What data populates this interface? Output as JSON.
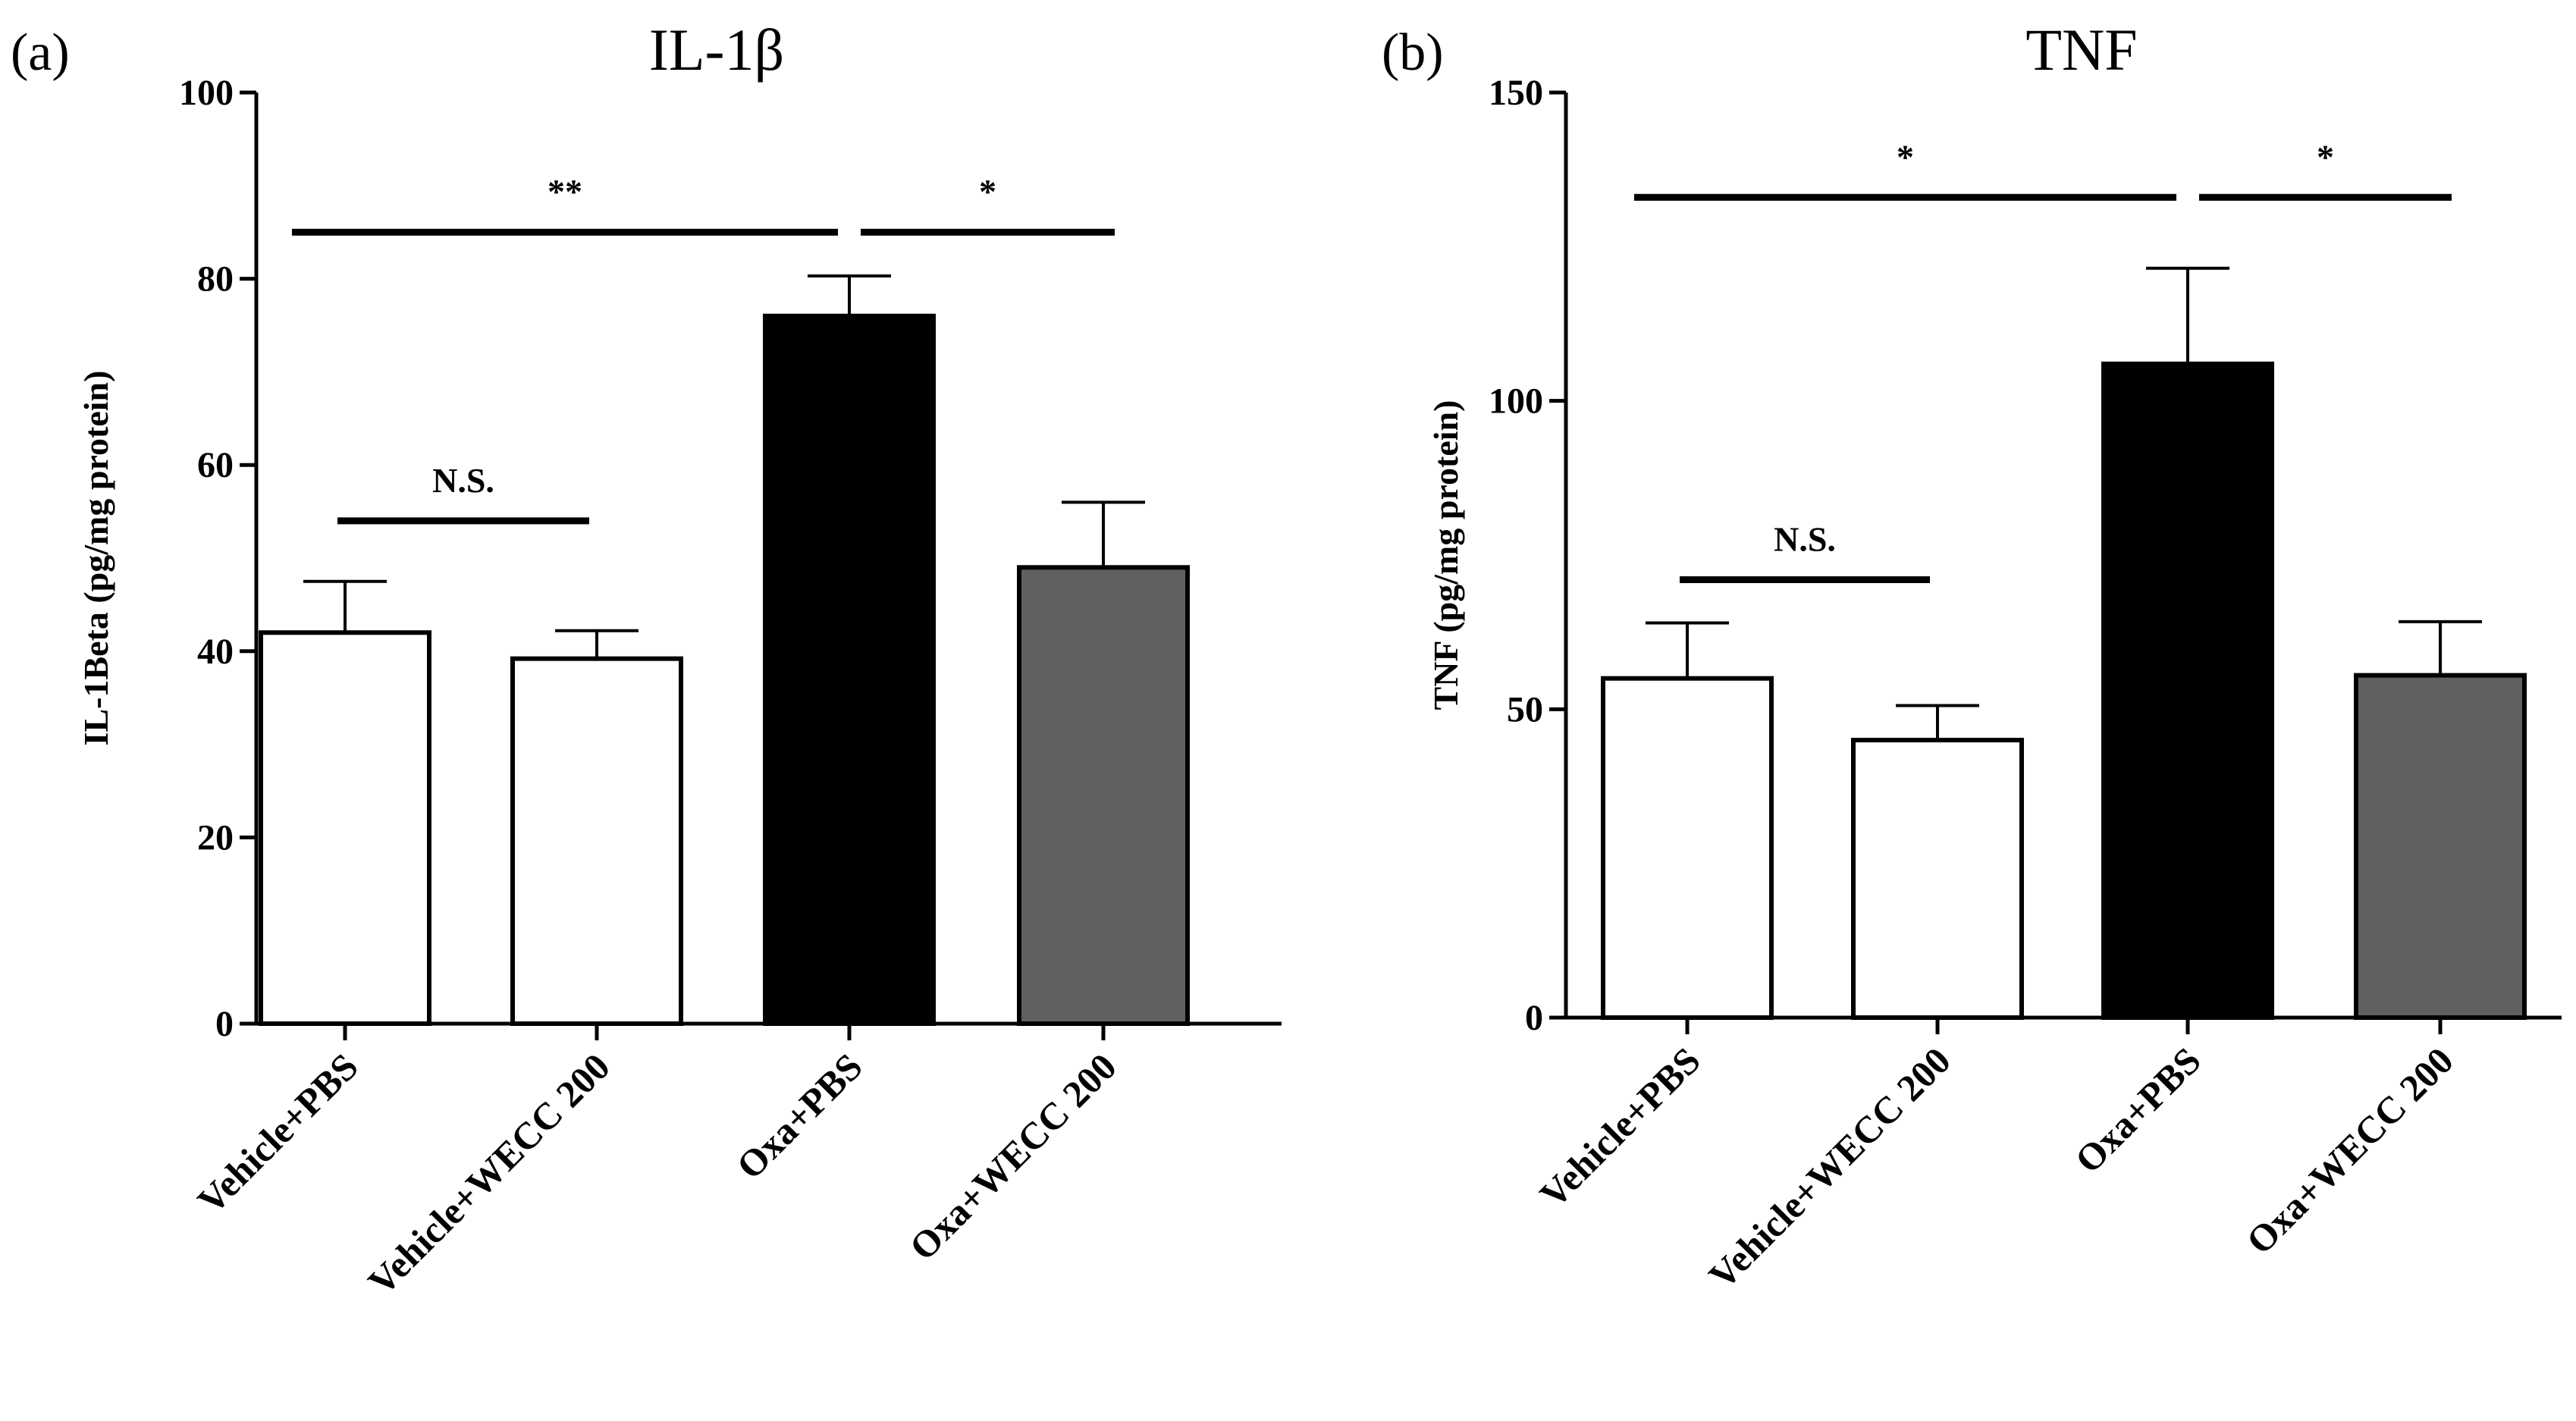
{
  "chart_data": [
    {
      "type": "bar",
      "panel": "(a)",
      "title": "IL-1β",
      "ylabel": "IL-1Beta (pg/mg protein)",
      "xlabel": "",
      "ylim": [
        0,
        100
      ],
      "yticks": [
        0,
        20,
        40,
        60,
        80,
        100
      ],
      "categories": [
        "Vehicle+PBS",
        "Vehicle+WECC 200",
        "Oxa+PBS",
        "Oxa+WECC 200"
      ],
      "values": [
        42,
        39.2,
        76,
        49
      ],
      "errors": [
        5.5,
        3,
        4.3,
        7
      ],
      "colors": [
        "#ffffff",
        "#ffffff",
        "#000000",
        "#606060"
      ],
      "significance": [
        {
          "from": 0,
          "to": 2,
          "label": "**",
          "y": 85
        },
        {
          "from": 2,
          "to": 3,
          "label": "*",
          "y": 85
        },
        {
          "from": 0,
          "to": 1,
          "label": "N.S.",
          "y": 54
        }
      ]
    },
    {
      "type": "bar",
      "panel": "(b)",
      "title": "TNF",
      "ylabel": "TNF (pg/mg  protein)",
      "xlabel": "",
      "ylim": [
        0,
        150
      ],
      "yticks": [
        0,
        50,
        100,
        150
      ],
      "categories": [
        "Vehicle+PBS",
        "Vehicle+WECC 200",
        "Oxa+PBS",
        "Oxa+WECC 200"
      ],
      "values": [
        55,
        45,
        106,
        55.5
      ],
      "errors": [
        9,
        5.6,
        15.5,
        8.7
      ],
      "colors": [
        "#ffffff",
        "#ffffff",
        "#000000",
        "#606060"
      ],
      "significance": [
        {
          "from": 0,
          "to": 2,
          "label": "*",
          "y": 133
        },
        {
          "from": 2,
          "to": 3,
          "label": "*",
          "y": 133
        },
        {
          "from": 0,
          "to": 1,
          "label": "N.S.",
          "y": 71
        }
      ]
    }
  ]
}
